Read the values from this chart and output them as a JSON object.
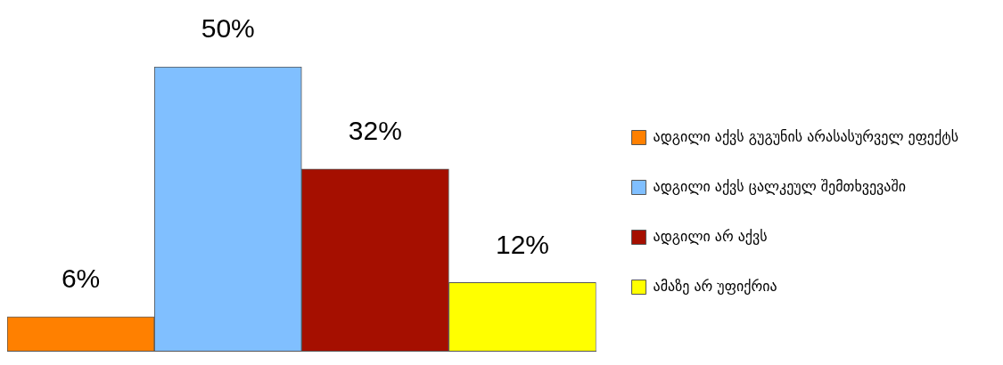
{
  "chart_data": {
    "type": "bar",
    "categories": [
      null
    ],
    "series": [
      {
        "name": "ადგილი აქვს გუგუნის არასასურველ ეფექტს",
        "color": "#ff8000",
        "values": [
          6
        ],
        "value_labels": [
          "6%"
        ]
      },
      {
        "name": "ადგილი აქვს ცალკეულ შემთხვევაში",
        "color": "#80bfff",
        "values": [
          50
        ],
        "value_labels": [
          "50%"
        ]
      },
      {
        "name": "ადგილი არ აქვს",
        "color": "#a50f00",
        "values": [
          32
        ],
        "value_labels": [
          "32%"
        ]
      },
      {
        "name": "ამაზე არ უფიქრია",
        "color": "#ffff00",
        "values": [
          12
        ],
        "value_labels": [
          "12%"
        ]
      }
    ],
    "legend": "right",
    "grid": false
  }
}
